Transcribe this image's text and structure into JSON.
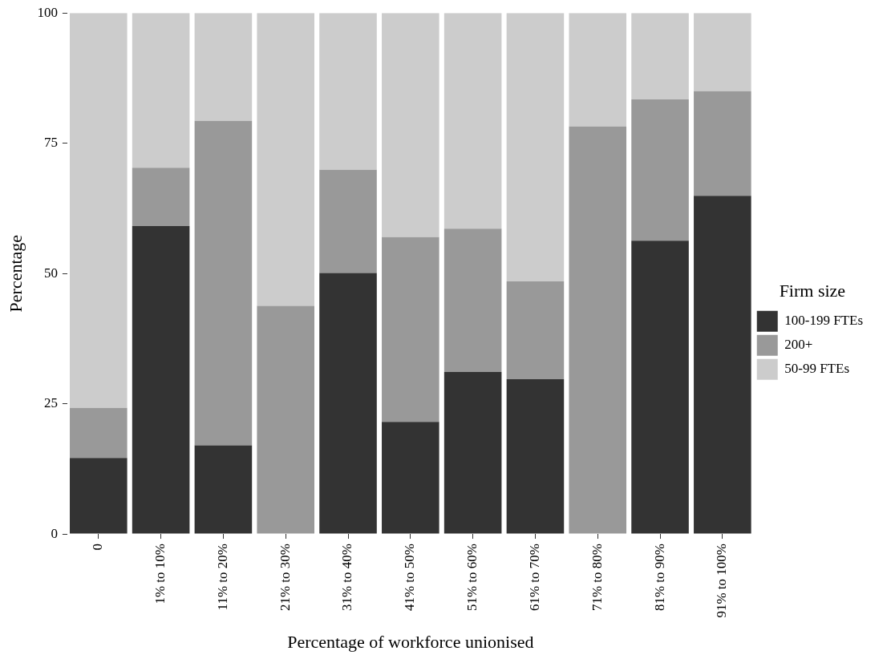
{
  "chart_data": {
    "type": "bar",
    "stacked": true,
    "xlabel": "Percentage of workforce unionised",
    "ylabel": "Percentage",
    "legend_title": "Firm size",
    "legend": "right",
    "grid": false,
    "categories": [
      "0",
      "1% to 10%",
      "11% to 20%",
      "21% to 30%",
      "31% to 40%",
      "41% to 50%",
      "51% to 60%",
      "61% to 70%",
      "71% to 80%",
      "81% to 90%",
      "91% to 100%"
    ],
    "series": [
      {
        "name": "100-199 FTEs",
        "color": "#333333",
        "values": [
          14.6,
          59.1,
          17.0,
          0,
          50.1,
          21.5,
          31.1,
          29.7,
          0,
          56.3,
          64.9
        ]
      },
      {
        "name": "200+",
        "color": "#999999",
        "values": [
          9.6,
          11.2,
          62.3,
          43.8,
          19.8,
          35.5,
          27.5,
          18.8,
          78.2,
          27.1,
          20.1
        ]
      },
      {
        "name": "50-99 FTEs",
        "color": "#cccccc",
        "values": [
          75.8,
          29.7,
          20.7,
          56.2,
          30.1,
          43.0,
          41.4,
          51.5,
          21.8,
          16.6,
          15.0
        ]
      }
    ],
    "ylim": [
      0,
      100
    ],
    "yticks": [
      0,
      25,
      50,
      75,
      100
    ]
  }
}
